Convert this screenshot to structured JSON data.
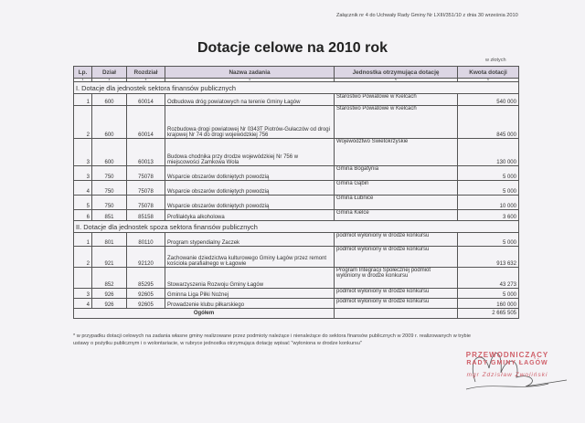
{
  "header_note": "Załącznik nr 4 do Uchwały Rady Gminy Nr  LXIII/351/10   z dnia 30 września  2010",
  "title": "Dotacje celowe na 2010 rok",
  "unit": "w złotych",
  "columns": [
    "Lp.",
    "Dział",
    "Rozdział",
    "Nazwa zadania",
    "Jednostka otrzymująca dotację",
    "Kwota dotacji"
  ],
  "column_numbers": [
    "1",
    "2",
    "3",
    "4",
    "5",
    "6"
  ],
  "section1": {
    "title": "I. Dotacje dla jednostek sektora finansów publicznych",
    "rows": [
      {
        "lp": "1",
        "dzial": "600",
        "rozdzial": "60014",
        "nazwa": "Odbudowa dróg powiatowych na terenie Gminy Łagów",
        "jednostka": "Starostwo Powiatowe w Kielcach",
        "kwota": "540 000"
      },
      {
        "lp": "2",
        "dzial": "600",
        "rozdzial": "60014",
        "nazwa": "Rozbudowa drogi powiatowej Nr 0343T Piotrów-Gułaczów od drogi krajowej Nr 74 do drogi wojewódzkiej 756",
        "jednostka": "Starostwo Powiatowe w Kielcach",
        "kwota": "845 000"
      },
      {
        "lp": "3",
        "dzial": "600",
        "rozdzial": "60013",
        "nazwa": "Budowa chodnika przy drodze wojewódzkiej Nr 756 w miejscowości Zamkowa Wola",
        "jednostka": "Województwo Świetokrzyskie",
        "kwota": "130 000"
      },
      {
        "lp": "3",
        "dzial": "750",
        "rozdzial": "75078",
        "nazwa": "Wsparcie obszarów dotkniętych powodzią",
        "jednostka": "Gmina Bogatynia",
        "kwota": "5 000"
      },
      {
        "lp": "4",
        "dzial": "750",
        "rozdzial": "75078",
        "nazwa": "Wsparcie obszarów dotkniętych powodzią",
        "jednostka": "Gmina Gąbin",
        "kwota": "5 000"
      },
      {
        "lp": "5",
        "dzial": "750",
        "rozdzial": "75078",
        "nazwa": "Wsparcie obszarów dotkniętych powodzią",
        "jednostka": "Gmina Łubnice",
        "kwota": "10 000"
      },
      {
        "lp": "6",
        "dzial": "851",
        "rozdzial": "85158",
        "nazwa": "Profilaktyka alkoholowa",
        "jednostka": "Gmina Kielce",
        "kwota": "3 600"
      }
    ]
  },
  "section2": {
    "title": "II. Dotacje dla jednostek spoza sektora finansów publicznych",
    "rows": [
      {
        "lp": "1",
        "dzial": "801",
        "rozdzial": "80110",
        "nazwa": "Program stypendialny Zaczek",
        "jednostka": "podmiot wyłoniony w drodze konkursu",
        "kwota": "5 000"
      },
      {
        "lp": "2",
        "dzial": "921",
        "rozdzial": "92120",
        "nazwa": "Zachowanie dziedzictwa kulturowego Gminy Łagów przez remont kościoła parafialnego w Łagowie",
        "jednostka": "podmiot wyłoniony w drodze konkursu",
        "kwota": "913 632"
      },
      {
        "lp": "",
        "dzial": "852",
        "rozdzial": "85295",
        "nazwa": "Stowarzyszenia Rozwoju Gminy Łagów",
        "jednostka": "Program Integracji Społecznej podmiot wyłoniony w drodze konkursu",
        "kwota": "43 273"
      },
      {
        "lp": "3",
        "dzial": "926",
        "rozdzial": "92605",
        "nazwa": "Gminna Liga Piłki Nożnej",
        "jednostka": "podmiot wyłoniony w drodze konkursu",
        "kwota": "5 000"
      },
      {
        "lp": "4",
        "dzial": "926",
        "rozdzial": "92605",
        "nazwa": "Prowadzenie klubu piłkarskiego",
        "jednostka": "podmiot wyłoniony w drodze konkursu",
        "kwota": "160 000"
      }
    ]
  },
  "total": {
    "label": "Ogółem",
    "value": "2 665 505"
  },
  "footnote": "* w przypadku dotacji celowych na zadania własne gminy realizowane przez podmioty należące i nienależące do sektora finansów publicznych w 2009 r. realizowanych w trybie ustawy o pożytku publicznym i o wolontariacie,  w rubryce jednostka otrzymująca dotację wpisać \"wyłoniona w drodze konkursu\"",
  "stamp": {
    "line1": "PRZEWODNICZĄCY",
    "line2": "RADY GMINY ŁAGÓW",
    "line3": "mgr  Zdzisław  Zwoliński"
  },
  "colors": {
    "header_bg": "#dcd6e4",
    "stamp": "#d0606a"
  }
}
